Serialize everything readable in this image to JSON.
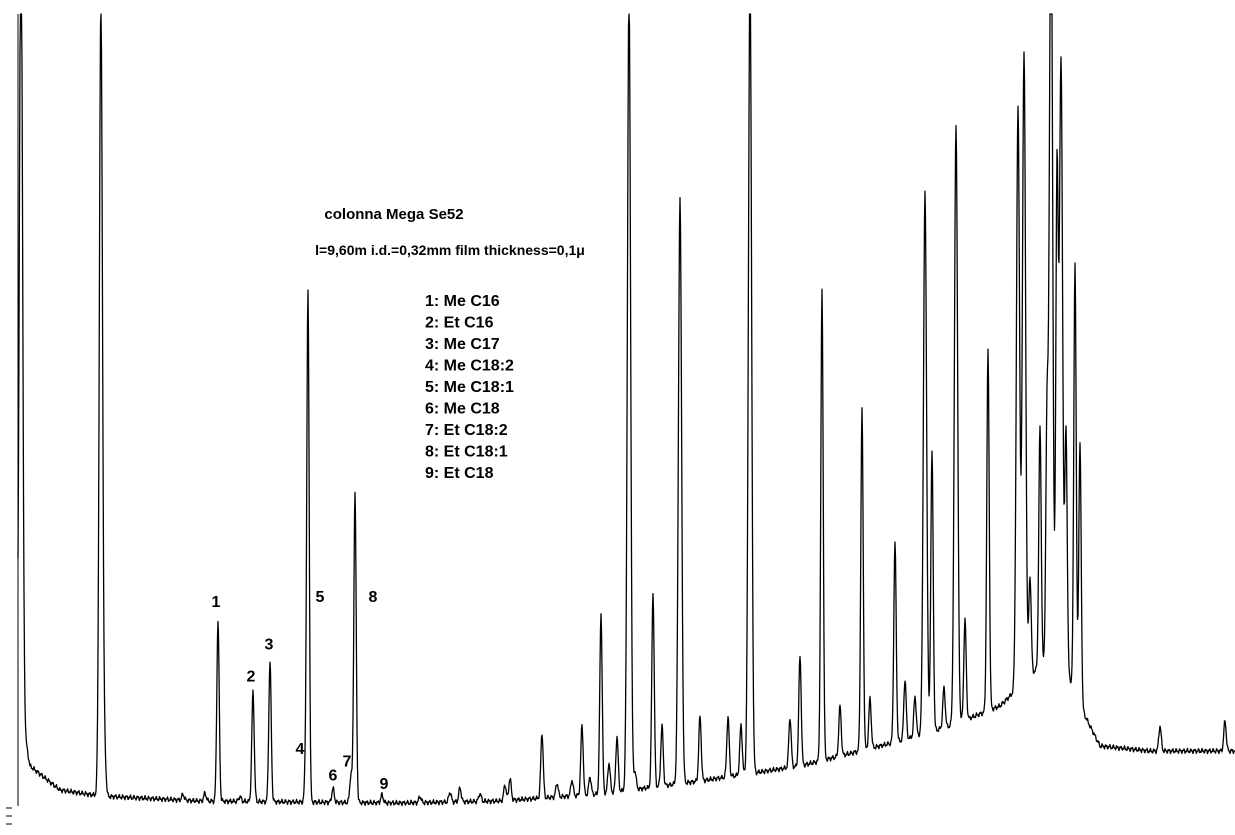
{
  "chart_data": {
    "type": "line",
    "title": "colonna Mega Se52",
    "subtitle": "l=9,60m  i.d.=0,32mm  film thickness=0,1μ",
    "xlabel": "",
    "ylabel": "",
    "grid": false,
    "legend": {
      "placement": "center-top",
      "entries": [
        "1: Me C16",
        "2: Et  C16",
        "3: Me C17",
        "4: Me C18:2",
        "5: Me C18:1",
        "6: Me C18",
        "7: Et  C18:2",
        "8: Et  C18:1",
        "9: Et  C18"
      ]
    },
    "numbered_peaks": [
      {
        "label": "1",
        "x": 218,
        "height": 180
      },
      {
        "label": "2",
        "x": 253,
        "height": 110
      },
      {
        "label": "3",
        "x": 270,
        "height": 140
      },
      {
        "label": "4",
        "x": 306,
        "height": 40
      },
      {
        "label": "5",
        "x": 308,
        "height": 500
      },
      {
        "label": "6",
        "x": 333,
        "height": 14
      },
      {
        "label": "7",
        "x": 351,
        "height": 28
      },
      {
        "label": "8",
        "x": 355,
        "height": 310
      },
      {
        "label": "9",
        "x": 382,
        "height": 8
      }
    ],
    "other_peaks": [
      [
        21,
        800
      ],
      [
        100,
        60
      ],
      [
        101,
        750
      ],
      [
        105,
        30
      ],
      [
        183,
        6
      ],
      [
        205,
        8
      ],
      [
        240,
        5
      ],
      [
        420,
        6
      ],
      [
        450,
        10
      ],
      [
        460,
        14
      ],
      [
        480,
        8
      ],
      [
        505,
        16
      ],
      [
        510,
        22
      ],
      [
        542,
        65
      ],
      [
        557,
        14
      ],
      [
        572,
        16
      ],
      [
        582,
        70
      ],
      [
        590,
        18
      ],
      [
        601,
        180
      ],
      [
        609,
        30
      ],
      [
        617,
        55
      ],
      [
        629,
        800
      ],
      [
        635,
        18
      ],
      [
        653,
        195
      ],
      [
        662,
        60
      ],
      [
        680,
        585
      ],
      [
        700,
        65
      ],
      [
        728,
        60
      ],
      [
        741,
        50
      ],
      [
        750,
        800
      ],
      [
        790,
        50
      ],
      [
        800,
        110
      ],
      [
        822,
        470
      ],
      [
        840,
        50
      ],
      [
        862,
        340
      ],
      [
        870,
        50
      ],
      [
        895,
        200
      ],
      [
        905,
        60
      ],
      [
        915,
        40
      ],
      [
        925,
        540
      ],
      [
        932,
        280
      ],
      [
        944,
        40
      ],
      [
        956,
        600
      ],
      [
        965,
        100
      ],
      [
        988,
        360
      ],
      [
        1018,
        580
      ],
      [
        1024,
        630
      ],
      [
        1030,
        100
      ],
      [
        1040,
        240
      ],
      [
        1047,
        240
      ],
      [
        1051,
        800
      ],
      [
        1057,
        480
      ],
      [
        1061,
        600
      ],
      [
        1066,
        240
      ],
      [
        1075,
        430
      ],
      [
        1080,
        260
      ],
      [
        1160,
        25
      ],
      [
        1225,
        30
      ]
    ],
    "baseline_points": [
      [
        18,
        110
      ],
      [
        30,
        40
      ],
      [
        60,
        16
      ],
      [
        100,
        10
      ],
      [
        200,
        5
      ],
      [
        400,
        3
      ],
      [
        500,
        5
      ],
      [
        600,
        12
      ],
      [
        700,
        25
      ],
      [
        800,
        40
      ],
      [
        900,
        65
      ],
      [
        950,
        80
      ],
      [
        1000,
        100
      ],
      [
        1040,
        140
      ],
      [
        1060,
        150
      ],
      [
        1085,
        90
      ],
      [
        1100,
        60
      ],
      [
        1150,
        55
      ],
      [
        1235,
        55
      ]
    ]
  }
}
